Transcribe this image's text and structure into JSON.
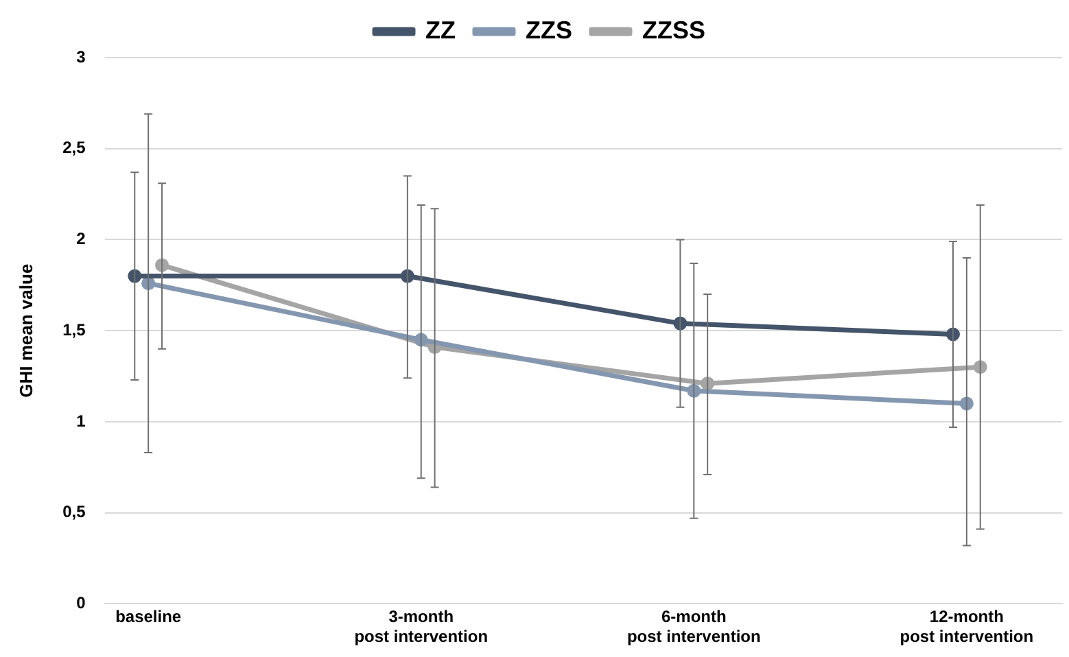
{
  "chart_data": {
    "type": "line",
    "ylabel": "GHI mean value",
    "categories": [
      "baseline",
      "3-month post intervention",
      "6-month post intervention",
      "12-month post intervention"
    ],
    "series": [
      {
        "name": "ZZ",
        "color": "#44546a",
        "values": [
          1.8,
          1.8,
          1.54,
          1.48
        ],
        "errors": [
          [
            1.23,
            2.37
          ],
          [
            1.24,
            2.35
          ],
          [
            1.08,
            2.0
          ],
          [
            0.97,
            1.99
          ]
        ]
      },
      {
        "name": "ZZS",
        "color": "#8497b0",
        "values": [
          1.76,
          1.45,
          1.17,
          1.1
        ],
        "errors": [
          [
            0.83,
            2.69
          ],
          [
            0.69,
            2.19
          ],
          [
            0.47,
            1.87
          ],
          [
            0.32,
            1.9
          ]
        ]
      },
      {
        "name": "ZZSS",
        "color": "#a5a5a5",
        "values": [
          1.86,
          1.41,
          1.21,
          1.3
        ],
        "errors": [
          [
            1.4,
            2.31
          ],
          [
            0.64,
            2.17
          ],
          [
            0.71,
            1.7
          ],
          [
            0.41,
            2.19
          ]
        ]
      }
    ],
    "ylim": [
      0,
      3
    ],
    "yticks": [
      0,
      {
        "value": 0.5,
        "label": "0,5"
      },
      1,
      {
        "value": 1.5,
        "label": "1,5"
      },
      2,
      {
        "value": 2.5,
        "label": "2,5"
      },
      3
    ],
    "grid": "y",
    "legend": "top",
    "marker": "circle",
    "line_style": "solid"
  }
}
